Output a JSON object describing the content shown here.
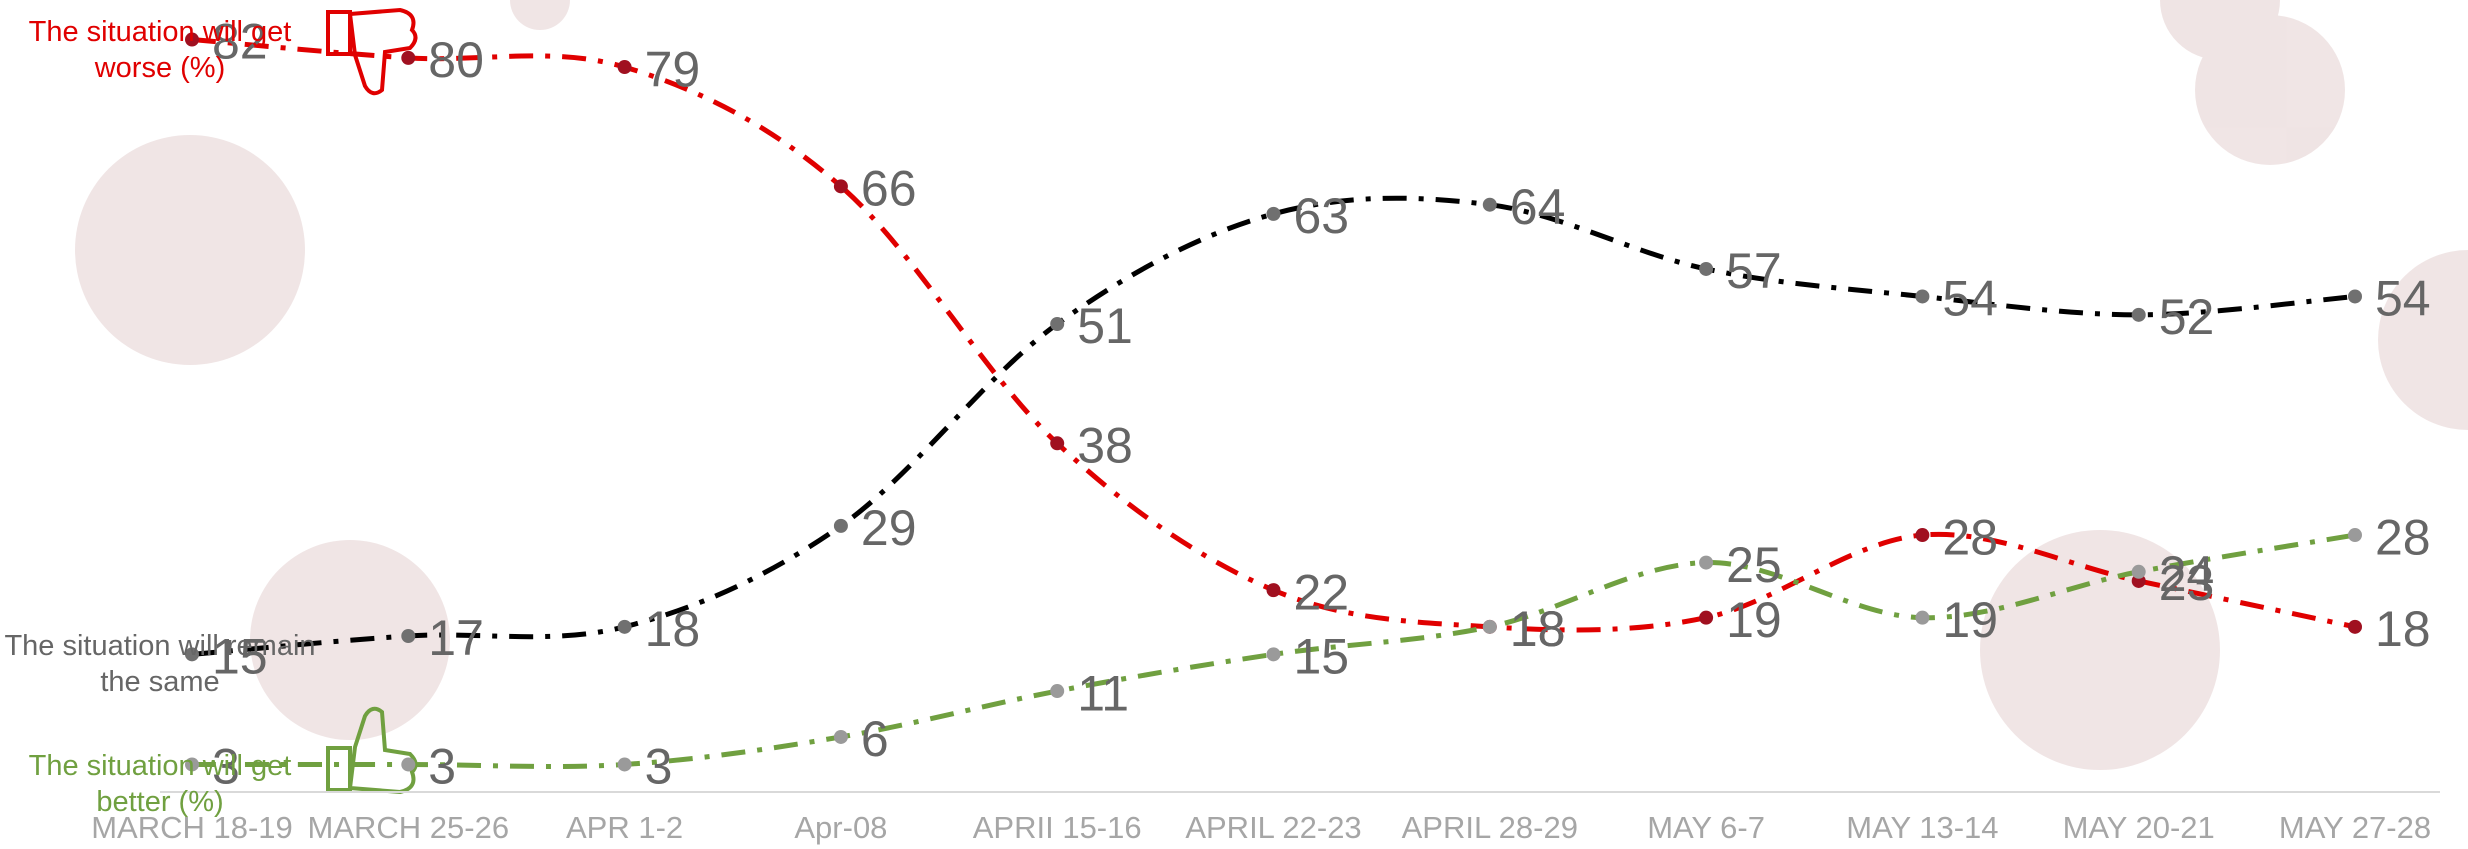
{
  "chart_data": {
    "type": "line",
    "categories": [
      "MARCH 18-19",
      "MARCH 25-26",
      "APR 1-2",
      "Apr-08",
      "APRII 15-16",
      "APRIL 22-23",
      "APRIL 28-29",
      "MAY 6-7",
      "MAY 13-14",
      "MAY 20-21",
      "MAY 27-28"
    ],
    "series": [
      {
        "name": "The situation will get worse (%)",
        "color": "#e00000",
        "marker_color": "#a01020",
        "values": [
          82,
          80,
          79,
          66,
          38,
          22,
          18,
          19,
          28,
          23,
          18
        ]
      },
      {
        "name": "The situation will remain the same",
        "color": "#000000",
        "marker_color": "#707070",
        "values": [
          15,
          17,
          18,
          29,
          51,
          63,
          64,
          57,
          54,
          52,
          54
        ]
      },
      {
        "name": "The situation will get better (%)",
        "color": "#70a040",
        "marker_color": "#9a9a9a",
        "values": [
          3,
          3,
          3,
          6,
          11,
          15,
          18,
          25,
          19,
          24,
          28
        ]
      }
    ],
    "ylim": [
      0,
      85
    ]
  }
}
